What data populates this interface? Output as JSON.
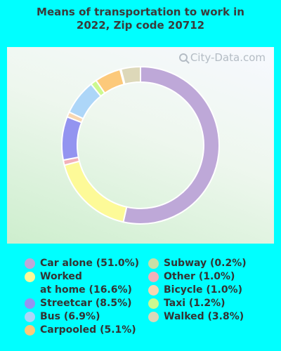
{
  "title_line1": "Means of transportation to work in",
  "title_line2": "2022, Zip code 20712",
  "watermark": "City-Data.com",
  "chart_data": {
    "type": "pie",
    "variant": "donut",
    "title": "Means of transportation to work in 2022, Zip code 20712",
    "slices": [
      {
        "label": "Car alone",
        "value": 51.0,
        "color": "#bea8d8"
      },
      {
        "label": "Worked at home",
        "value": 16.6,
        "color": "#fdfa98"
      },
      {
        "label": "Other",
        "value": 1.0,
        "color": "#f2b1b9"
      },
      {
        "label": "Streetcar",
        "value": 8.5,
        "color": "#9394f0"
      },
      {
        "label": "Bicycle",
        "value": 1.0,
        "color": "#f8d6b0"
      },
      {
        "label": "Bus",
        "value": 6.9,
        "color": "#add6f8"
      },
      {
        "label": "Taxi",
        "value": 1.2,
        "color": "#ccf98f"
      },
      {
        "label": "Carpooled",
        "value": 5.1,
        "color": "#fcc97a"
      },
      {
        "label": "Subway",
        "value": 0.2,
        "color": "#c9dfa6"
      },
      {
        "label": "Walked",
        "value": 3.8,
        "color": "#ddd8b9"
      }
    ],
    "legend_placement": "bottom"
  },
  "legend": {
    "col1": [
      {
        "text": "Car alone (51.0%)",
        "color": "#bea8d8"
      },
      {
        "text": "Worked",
        "text2": "at home (16.6%)",
        "color": "#fdfa98"
      },
      {
        "text": "Streetcar (8.5%)",
        "color": "#9394f0"
      },
      {
        "text": "Bus (6.9%)",
        "color": "#add6f8"
      },
      {
        "text": "Carpooled (5.1%)",
        "color": "#fcc97a"
      }
    ],
    "col2": [
      {
        "text": "Subway (0.2%)",
        "color": "#c9dfa6"
      },
      {
        "text": "Other (1.0%)",
        "color": "#f2b1b9"
      },
      {
        "text": "Bicycle (1.0%)",
        "color": "#f8d6b0"
      },
      {
        "text": "Taxi (1.2%)",
        "color": "#ccf98f"
      },
      {
        "text": "Walked (3.8%)",
        "color": "#ddd8b9"
      }
    ]
  }
}
